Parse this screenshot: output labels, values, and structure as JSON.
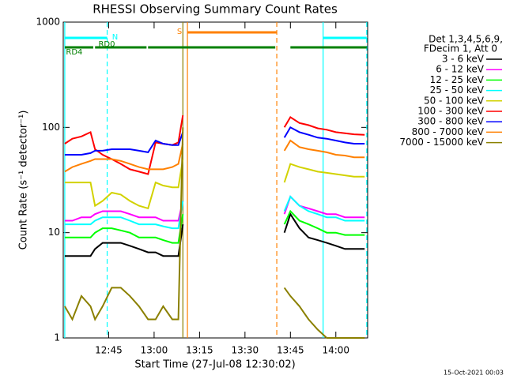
{
  "chart_data": {
    "type": "line",
    "title": "RHESSI Observing Summary Count Rates",
    "x_label": "Start Time (27-Jul-08 12:30:02)",
    "y_label": "Count Rate (s⁻¹ detector⁻¹)",
    "legend_header": [
      "Det 1,3,4,5,6,9,",
      "FDecim 1, Att 0"
    ],
    "footer": "15-Oct-2021 00:03",
    "log_y": true,
    "xlim": [
      750,
      850.5
    ],
    "ylim": [
      1,
      1000
    ],
    "xticks": [
      {
        "value": 765,
        "label": "12:45"
      },
      {
        "value": 780,
        "label": "13:00"
      },
      {
        "value": 795,
        "label": "13:15"
      },
      {
        "value": 810,
        "label": "13:30"
      },
      {
        "value": 825,
        "label": "13:45"
      },
      {
        "value": 840,
        "label": "14:00"
      }
    ],
    "yticks": [
      1,
      10,
      100,
      1000
    ],
    "x": [
      750.5,
      753,
      756,
      759,
      760.5,
      763,
      766,
      769,
      772,
      775,
      778,
      780.5,
      783,
      786,
      788,
      789.5,
      806,
      823,
      825,
      828,
      831,
      834,
      837,
      840,
      843,
      846,
      849.5
    ],
    "series": [
      {
        "name": "3 - 6 keV",
        "color": "#000000",
        "values": [
          6,
          6,
          6,
          6,
          7,
          8,
          8,
          8,
          7.5,
          7,
          6.5,
          6.5,
          6,
          6,
          6,
          12,
          null,
          10,
          15,
          11,
          9,
          8.5,
          8,
          7.5,
          7,
          7,
          7
        ]
      },
      {
        "name": "6 - 12 keV",
        "color": "#ff00ff",
        "values": [
          13,
          13,
          14,
          14,
          15,
          16,
          16,
          16,
          15,
          14,
          14,
          14,
          13,
          13,
          13,
          20,
          null,
          15,
          22,
          18,
          17,
          16,
          15,
          15,
          14,
          14,
          14
        ]
      },
      {
        "name": "12 - 25 keV",
        "color": "#00ff00",
        "values": [
          9,
          9,
          9,
          9,
          10,
          11,
          11,
          10.5,
          10,
          9,
          9,
          9,
          8.5,
          8,
          8,
          15,
          null,
          12,
          16,
          13,
          12,
          11,
          10,
          10,
          9.5,
          9.5,
          9.5
        ]
      },
      {
        "name": "25 - 50 keV",
        "color": "#00ffff",
        "values": [
          12,
          12,
          12,
          12,
          13,
          14,
          14,
          14,
          13,
          12,
          12,
          12,
          11.5,
          11,
          11,
          20,
          null,
          16,
          22,
          18,
          16,
          15,
          14,
          14,
          13,
          13,
          13
        ]
      },
      {
        "name": "50 - 100 keV",
        "color": "#d2d200",
        "values": [
          30,
          30,
          30,
          30,
          18,
          20,
          24,
          23,
          20,
          18,
          17,
          30,
          28,
          27,
          27,
          50,
          null,
          30,
          45,
          42,
          40,
          38,
          37,
          36,
          35,
          34,
          34
        ]
      },
      {
        "name": "100 - 300 keV",
        "color": "#ff0000",
        "values": [
          70,
          78,
          82,
          90,
          62,
          55,
          50,
          45,
          40,
          38,
          36,
          72,
          70,
          68,
          72,
          130,
          null,
          100,
          125,
          110,
          105,
          98,
          95,
          90,
          88,
          86,
          85
        ]
      },
      {
        "name": "300 - 800 keV",
        "color": "#0000ff",
        "values": [
          55,
          55,
          55,
          57,
          60,
          60,
          62,
          62,
          62,
          60,
          58,
          75,
          70,
          68,
          68,
          90,
          null,
          80,
          100,
          90,
          85,
          80,
          78,
          75,
          72,
          70,
          70
        ]
      },
      {
        "name": "800 - 7000 keV",
        "color": "#ff8000",
        "values": [
          38,
          42,
          45,
          48,
          50,
          50,
          50,
          48,
          45,
          42,
          40,
          40,
          40,
          42,
          45,
          70,
          null,
          60,
          75,
          65,
          62,
          60,
          58,
          55,
          54,
          52,
          52
        ]
      },
      {
        "name": "7000 - 15000 keV",
        "color": "#8b8000",
        "values": [
          2,
          1.5,
          2.5,
          2,
          1.5,
          2,
          3,
          3,
          2.5,
          2,
          1.5,
          1.5,
          2,
          1.5,
          1.5,
          100,
          null,
          3,
          2.5,
          2,
          1.5,
          1.2,
          1,
          1,
          1,
          1,
          1
        ]
      }
    ],
    "vlines": [
      {
        "x": 750.5,
        "color": "#00ffff",
        "dashed": false
      },
      {
        "x": 764.5,
        "color": "#00ffff",
        "dashed": true
      },
      {
        "x": 835.8,
        "color": "#00ffff",
        "dashed": false
      },
      {
        "x": 850.2,
        "color": "#00ffff",
        "dashed": true
      },
      {
        "x": 791,
        "color": "#ff8000",
        "dashed": false
      },
      {
        "x": 820.5,
        "color": "#ff8000",
        "dashed": true
      },
      {
        "x": 789.5,
        "color": "#8b8000",
        "dashed": false
      }
    ],
    "flags": [
      {
        "label": "S",
        "color": "#ff8000",
        "segments": [
          [
            791,
            820.5
          ]
        ]
      },
      {
        "label": "N",
        "color": "#00ffff",
        "segments": [
          [
            750.5,
            764.5
          ],
          [
            835.8,
            850.2
          ]
        ]
      },
      {
        "label": "RD0",
        "color": "#008000",
        "segments": []
      },
      {
        "label": "RD4",
        "color": "#008000",
        "segments": [
          [
            750.5,
            759.9
          ],
          [
            760.5,
            777.5
          ],
          [
            778,
            820
          ],
          [
            825,
            850.2
          ]
        ]
      }
    ]
  }
}
